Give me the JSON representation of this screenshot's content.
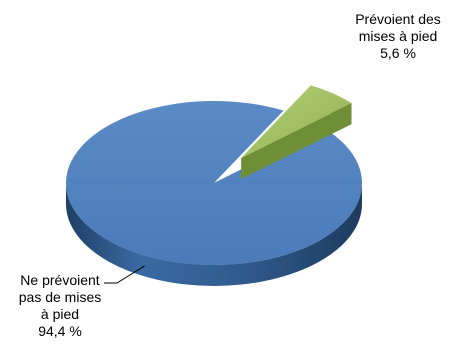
{
  "chart_data": {
    "type": "pie",
    "title": "",
    "slices": [
      {
        "label_lines": [
          "Ne prévoient",
          "pas de mises",
          "à pied"
        ],
        "value_text": "94,4 %",
        "value": 94.4,
        "color": "#4F81BD"
      },
      {
        "label_lines": [
          "Prévoient des",
          "mises à pied"
        ],
        "value_text": "5,6 %",
        "value": 5.6,
        "color": "#9BBB59"
      }
    ]
  }
}
